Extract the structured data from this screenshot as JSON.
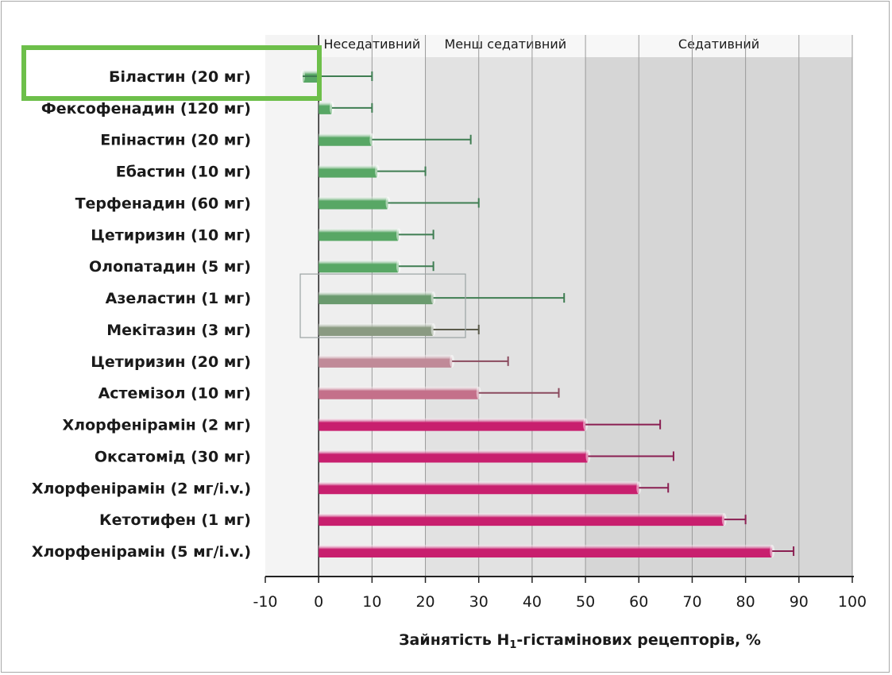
{
  "chart_data": {
    "type": "bar",
    "orientation": "horizontal",
    "categories": [
      "Біластин (20 мг)",
      "Фексофенадин (120 мг)",
      "Епінастин (20 мг)",
      "Ебастин (10 мг)",
      "Терфенадин (60 мг)",
      "Цетиризин (10 мг)",
      "Олопатадин (5 мг)",
      "Азеластин (1 мг)",
      "Мекітазин (3 мг)",
      "Цетиризин (20 мг)",
      "Астемізол (10 мг)",
      "Хлорфенірамін (2 мг)",
      "Оксатомід (30 мг)",
      "Хлорфенірамін (2 мг/i.v.)",
      "Кетотифен (1 мг)",
      "Хлорфенірамін (5 мг/i.v.)"
    ],
    "values": [
      -3,
      2.5,
      10,
      11,
      13,
      15,
      15,
      21.5,
      21.5,
      25,
      30,
      50,
      50.5,
      60,
      76,
      85
    ],
    "error_upper": [
      10,
      10,
      28.5,
      20,
      30,
      21.5,
      21.5,
      46,
      30,
      35.5,
      45,
      64,
      66.5,
      65.5,
      80,
      89
    ],
    "bar_colors": [
      "#58a765",
      "#58a765",
      "#58a765",
      "#58a765",
      "#58a765",
      "#58a765",
      "#58a765",
      "#6a9a6e",
      "#8a9a82",
      "#c08a98",
      "#c4708a",
      "#c81f6e",
      "#c81f6e",
      "#c81f6e",
      "#c81f6e",
      "#c81f6e"
    ],
    "error_colors": [
      "#3f7d52",
      "#3f7d52",
      "#3f7d52",
      "#3f7d52",
      "#3f7d52",
      "#3f7d52",
      "#3f7d52",
      "#3f7d52",
      "#5a5a4a",
      "#8a4a5e",
      "#8a4a5e",
      "#8a1f52",
      "#8a1f52",
      "#8a1f52",
      "#8a1f52",
      "#8a1f52"
    ],
    "xlim": [
      -10,
      100
    ],
    "x_ticks": [
      -10,
      0,
      10,
      20,
      30,
      40,
      50,
      60,
      70,
      80,
      90,
      100
    ],
    "xlabel_main": "Зайнятість H",
    "xlabel_sub": "1",
    "xlabel_rest": "-гістамінових рецепторів, %",
    "zones": [
      {
        "label": "Неседативний",
        "from": 0,
        "to": 20,
        "color": "#eeeeee"
      },
      {
        "label": "Менш седативний",
        "from": 20,
        "to": 50,
        "color": "#e2e2e2"
      },
      {
        "label": "Седативний",
        "from": 50,
        "to": 100,
        "color": "#d6d6d6"
      }
    ],
    "highlight_category": "Біластин (20 мг)",
    "highlight_color": "#6dbf4a",
    "grid": true
  }
}
